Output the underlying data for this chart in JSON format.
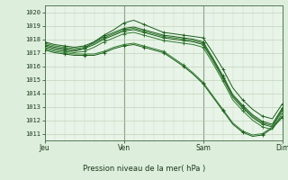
{
  "title": "Pression niveau de la mer( hPa )",
  "xlabel_days": [
    "Jeu",
    "Ven",
    "Sam",
    "Dim"
  ],
  "ylabel_ticks": [
    1011,
    1012,
    1013,
    1014,
    1015,
    1016,
    1017,
    1018,
    1019,
    1020
  ],
  "ylim": [
    1010.5,
    1020.5
  ],
  "xlim": [
    0,
    72
  ],
  "day_positions": [
    0,
    24,
    48,
    72
  ],
  "background_color": "#ddeedd",
  "plot_bg_color": "#e8f4e8",
  "grid_minor_color": "#c8d8c0",
  "grid_major_color": "#b8ccb0",
  "line_color_dark": "#1a5c1a",
  "line_color_mid": "#2d7a2d",
  "lines": [
    {
      "x": [
        0,
        3,
        6,
        9,
        12,
        15,
        18,
        21,
        24,
        27,
        30,
        33,
        36,
        39,
        42,
        45,
        48,
        51,
        54,
        57,
        60,
        63,
        66,
        69,
        72
      ],
      "y": [
        1017.5,
        1017.3,
        1017.2,
        1017.1,
        1017.3,
        1017.8,
        1018.3,
        1018.7,
        1019.2,
        1019.4,
        1019.1,
        1018.8,
        1018.5,
        1018.4,
        1018.3,
        1018.2,
        1018.1,
        1017.0,
        1015.8,
        1014.4,
        1013.5,
        1012.8,
        1012.3,
        1012.1,
        1013.2
      ]
    },
    {
      "x": [
        0,
        3,
        6,
        9,
        12,
        15,
        18,
        21,
        24,
        27,
        30,
        33,
        36,
        39,
        42,
        45,
        48,
        51,
        54,
        57,
        60,
        63,
        66,
        69,
        72
      ],
      "y": [
        1017.4,
        1017.2,
        1017.1,
        1017.0,
        1017.1,
        1017.4,
        1017.8,
        1018.1,
        1018.4,
        1018.5,
        1018.3,
        1018.1,
        1017.9,
        1017.8,
        1017.7,
        1017.6,
        1017.4,
        1016.2,
        1014.9,
        1013.5,
        1012.7,
        1012.0,
        1011.5,
        1011.3,
        1012.5
      ]
    },
    {
      "x": [
        0,
        3,
        6,
        9,
        12,
        15,
        18,
        21,
        24,
        27,
        30,
        33,
        36,
        39,
        42,
        45,
        48,
        51,
        54,
        57,
        60,
        63,
        66,
        69,
        72
      ],
      "y": [
        1017.6,
        1017.4,
        1017.3,
        1017.2,
        1017.3,
        1017.6,
        1018.0,
        1018.3,
        1018.6,
        1018.7,
        1018.5,
        1018.3,
        1018.1,
        1018.0,
        1017.9,
        1017.8,
        1017.6,
        1016.4,
        1015.1,
        1013.7,
        1012.9,
        1012.2,
        1011.7,
        1011.5,
        1012.7
      ]
    },
    {
      "x": [
        0,
        3,
        6,
        9,
        12,
        15,
        18,
        21,
        24,
        27,
        30,
        33,
        36,
        39,
        42,
        45,
        48,
        51,
        54,
        57,
        60,
        63,
        66,
        69,
        72
      ],
      "y": [
        1017.7,
        1017.5,
        1017.4,
        1017.3,
        1017.4,
        1017.7,
        1018.1,
        1018.4,
        1018.7,
        1018.8,
        1018.6,
        1018.4,
        1018.2,
        1018.1,
        1018.0,
        1017.9,
        1017.7,
        1016.5,
        1015.2,
        1013.8,
        1013.0,
        1012.3,
        1011.8,
        1011.6,
        1012.8
      ]
    },
    {
      "x": [
        0,
        3,
        6,
        9,
        12,
        15,
        18,
        21,
        24,
        27,
        30,
        33,
        36,
        39,
        42,
        45,
        48,
        51,
        54,
        57,
        60,
        63,
        66,
        69,
        72
      ],
      "y": [
        1017.8,
        1017.6,
        1017.5,
        1017.4,
        1017.5,
        1017.8,
        1018.2,
        1018.5,
        1018.8,
        1018.9,
        1018.7,
        1018.5,
        1018.3,
        1018.2,
        1018.1,
        1018.0,
        1017.8,
        1016.6,
        1015.3,
        1013.9,
        1013.1,
        1012.4,
        1011.9,
        1011.7,
        1012.9
      ]
    },
    {
      "x": [
        0,
        3,
        6,
        9,
        12,
        15,
        18,
        21,
        24,
        27,
        30,
        33,
        36,
        39,
        42,
        45,
        48,
        51,
        54,
        57,
        60,
        63,
        66,
        69,
        72
      ],
      "y": [
        1017.3,
        1017.1,
        1017.0,
        1016.9,
        1016.9,
        1016.9,
        1017.1,
        1017.4,
        1017.6,
        1017.7,
        1017.5,
        1017.3,
        1017.1,
        1016.6,
        1016.1,
        1015.5,
        1014.8,
        1013.8,
        1012.8,
        1011.8,
        1011.2,
        1010.9,
        1011.0,
        1011.5,
        1012.3
      ]
    },
    {
      "x": [
        0,
        3,
        6,
        9,
        12,
        15,
        18,
        21,
        24,
        27,
        30,
        33,
        36,
        39,
        42,
        45,
        48,
        51,
        54,
        57,
        60,
        63,
        66,
        69,
        72
      ],
      "y": [
        1017.2,
        1017.0,
        1016.9,
        1016.8,
        1016.8,
        1016.8,
        1017.0,
        1017.3,
        1017.5,
        1017.6,
        1017.4,
        1017.2,
        1017.0,
        1016.5,
        1016.0,
        1015.4,
        1014.7,
        1013.7,
        1012.7,
        1011.7,
        1011.1,
        1010.8,
        1010.9,
        1011.4,
        1012.2
      ]
    }
  ]
}
